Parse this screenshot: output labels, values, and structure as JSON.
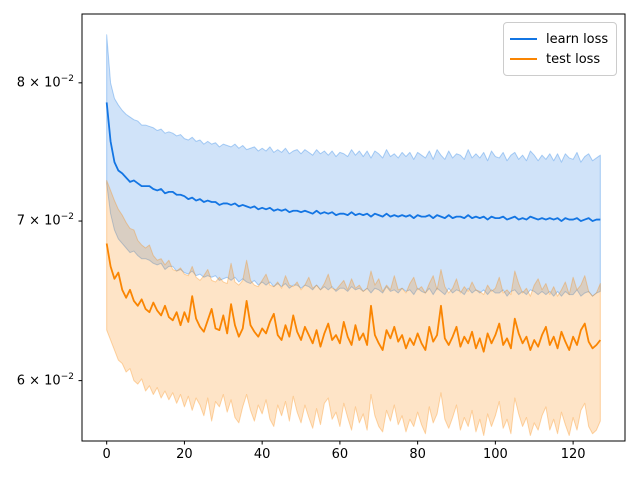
{
  "figure": {
    "background": "#ffffff"
  },
  "chart_data": {
    "type": "line",
    "title": "",
    "xlabel": "",
    "ylabel": "",
    "yscale": "log",
    "grid": false,
    "n_points": 128,
    "x_range": [
      0,
      127
    ],
    "xlim": [
      -6.35,
      133.35
    ],
    "ylim": [
      0.0566,
      0.0855
    ],
    "xticks": [
      0,
      20,
      40,
      60,
      80,
      100,
      120
    ],
    "xtick_labels": [
      "0",
      "20",
      "40",
      "60",
      "80",
      "100",
      "120"
    ],
    "yticks": [
      {
        "value": 0.06,
        "base": "6 × 10",
        "exp": "−2"
      },
      {
        "value": 0.07,
        "base": "7 × 10",
        "exp": "−2"
      },
      {
        "value": 0.08,
        "base": "8 × 10",
        "exp": "−2"
      }
    ],
    "legend": {
      "position": "upper right"
    },
    "series": [
      {
        "name": "learn loss",
        "color": "#1375e3",
        "band_alpha": 0.2,
        "mean": [
          0.0785,
          0.0756,
          0.0741,
          0.0735,
          0.0733,
          0.073,
          0.0727,
          0.0728,
          0.0726,
          0.0724,
          0.0724,
          0.0724,
          0.0722,
          0.0721,
          0.0722,
          0.0719,
          0.072,
          0.072,
          0.0718,
          0.0718,
          0.0717,
          0.0715,
          0.0716,
          0.0714,
          0.0715,
          0.0713,
          0.0714,
          0.0713,
          0.0713,
          0.0711,
          0.0712,
          0.0712,
          0.0711,
          0.0712,
          0.071,
          0.0711,
          0.071,
          0.0709,
          0.071,
          0.0708,
          0.0709,
          0.0708,
          0.0709,
          0.0707,
          0.0708,
          0.0707,
          0.0708,
          0.0706,
          0.0707,
          0.0707,
          0.0706,
          0.0707,
          0.0706,
          0.0705,
          0.0707,
          0.0705,
          0.0706,
          0.0705,
          0.0706,
          0.0704,
          0.0705,
          0.0705,
          0.0704,
          0.0706,
          0.0704,
          0.0705,
          0.0704,
          0.0705,
          0.0703,
          0.0705,
          0.0704,
          0.0703,
          0.0705,
          0.0703,
          0.0704,
          0.0703,
          0.0704,
          0.0703,
          0.0704,
          0.0702,
          0.0704,
          0.0703,
          0.0703,
          0.0704,
          0.0702,
          0.0704,
          0.0703,
          0.0702,
          0.0704,
          0.0702,
          0.0703,
          0.0703,
          0.0702,
          0.0704,
          0.0702,
          0.0703,
          0.0702,
          0.0703,
          0.0701,
          0.0703,
          0.0702,
          0.0702,
          0.0703,
          0.0701,
          0.0702,
          0.0703,
          0.0701,
          0.0702,
          0.0701,
          0.0703,
          0.0702,
          0.0701,
          0.0702,
          0.0701,
          0.0702,
          0.0701,
          0.0702,
          0.07,
          0.0702,
          0.0701,
          0.0701,
          0.0702,
          0.07,
          0.0701,
          0.0702,
          0.07,
          0.0701,
          0.0701
        ],
        "upper": [
          0.0838,
          0.08,
          0.0788,
          0.0783,
          0.0779,
          0.0776,
          0.0774,
          0.0772,
          0.0771,
          0.0768,
          0.0768,
          0.0767,
          0.0766,
          0.0764,
          0.0765,
          0.0762,
          0.0763,
          0.0762,
          0.076,
          0.0761,
          0.0758,
          0.0757,
          0.0759,
          0.0756,
          0.0757,
          0.0754,
          0.0756,
          0.0754,
          0.0755,
          0.0752,
          0.0754,
          0.0753,
          0.0752,
          0.0754,
          0.0751,
          0.0753,
          0.075,
          0.0751,
          0.0752,
          0.0749,
          0.0751,
          0.0749,
          0.0752,
          0.0748,
          0.075,
          0.0748,
          0.0751,
          0.0747,
          0.0749,
          0.075,
          0.0747,
          0.075,
          0.0748,
          0.0746,
          0.075,
          0.0747,
          0.0749,
          0.0746,
          0.0749,
          0.0745,
          0.0748,
          0.0747,
          0.0745,
          0.075,
          0.0746,
          0.0749,
          0.0745,
          0.0749,
          0.0744,
          0.0749,
          0.0747,
          0.0744,
          0.075,
          0.0745,
          0.0747,
          0.0744,
          0.0748,
          0.0745,
          0.0748,
          0.0743,
          0.0748,
          0.0746,
          0.0744,
          0.0749,
          0.0743,
          0.075,
          0.0746,
          0.0743,
          0.0749,
          0.0744,
          0.0747,
          0.0746,
          0.0743,
          0.075,
          0.0744,
          0.0747,
          0.0744,
          0.0748,
          0.0742,
          0.0749,
          0.0745,
          0.0744,
          0.0748,
          0.0742,
          0.0746,
          0.0748,
          0.0743,
          0.0746,
          0.0742,
          0.0749,
          0.0746,
          0.0742,
          0.0746,
          0.0743,
          0.0747,
          0.0742,
          0.0747,
          0.0741,
          0.0747,
          0.0744,
          0.0743,
          0.0748,
          0.0741,
          0.0745,
          0.0747,
          0.0742,
          0.0744,
          0.0746
        ],
        "lower": [
          0.0726,
          0.0705,
          0.0694,
          0.0688,
          0.0685,
          0.0682,
          0.0679,
          0.068,
          0.0677,
          0.0675,
          0.0675,
          0.0674,
          0.0672,
          0.0671,
          0.0672,
          0.0668,
          0.067,
          0.067,
          0.0667,
          0.0668,
          0.0666,
          0.0665,
          0.0667,
          0.0664,
          0.0665,
          0.0663,
          0.0664,
          0.0663,
          0.0664,
          0.0661,
          0.0662,
          0.0663,
          0.0661,
          0.0663,
          0.066,
          0.0662,
          0.066,
          0.0659,
          0.0661,
          0.0658,
          0.066,
          0.0658,
          0.066,
          0.0657,
          0.0659,
          0.0657,
          0.0659,
          0.0656,
          0.0658,
          0.0658,
          0.0656,
          0.0658,
          0.0657,
          0.0655,
          0.0658,
          0.0655,
          0.0657,
          0.0655,
          0.0657,
          0.0654,
          0.0656,
          0.0656,
          0.0654,
          0.0657,
          0.0655,
          0.0656,
          0.0654,
          0.0656,
          0.0653,
          0.0656,
          0.0655,
          0.0653,
          0.0657,
          0.0654,
          0.0655,
          0.0653,
          0.0656,
          0.0654,
          0.0655,
          0.0652,
          0.0656,
          0.0654,
          0.0653,
          0.0656,
          0.0652,
          0.0656,
          0.0654,
          0.0652,
          0.0656,
          0.0653,
          0.0655,
          0.0654,
          0.0652,
          0.0656,
          0.0653,
          0.0655,
          0.0653,
          0.0655,
          0.0652,
          0.0655,
          0.0653,
          0.0653,
          0.0655,
          0.0651,
          0.0654,
          0.0655,
          0.0652,
          0.0654,
          0.0652,
          0.0655,
          0.0654,
          0.0652,
          0.0654,
          0.0652,
          0.0654,
          0.0651,
          0.0654,
          0.0651,
          0.0654,
          0.0652,
          0.0652,
          0.0655,
          0.0651,
          0.0653,
          0.0654,
          0.0651,
          0.0653,
          0.0654
        ]
      },
      {
        "name": "test loss",
        "color": "#fa8502",
        "band_alpha": 0.22,
        "mean": [
          0.0685,
          0.067,
          0.0662,
          0.0666,
          0.0655,
          0.065,
          0.0655,
          0.0648,
          0.0645,
          0.0649,
          0.0643,
          0.0641,
          0.0647,
          0.0642,
          0.0639,
          0.0645,
          0.0638,
          0.0636,
          0.0641,
          0.0633,
          0.0641,
          0.0635,
          0.0651,
          0.0637,
          0.0632,
          0.0629,
          0.0636,
          0.0643,
          0.0631,
          0.063,
          0.0639,
          0.0628,
          0.0646,
          0.0633,
          0.0626,
          0.0631,
          0.0648,
          0.0633,
          0.0629,
          0.0626,
          0.0631,
          0.0628,
          0.0635,
          0.064,
          0.0627,
          0.0624,
          0.0633,
          0.0626,
          0.0639,
          0.0629,
          0.0624,
          0.0632,
          0.0627,
          0.0622,
          0.063,
          0.062,
          0.0628,
          0.0634,
          0.0624,
          0.0627,
          0.0622,
          0.0635,
          0.0626,
          0.0621,
          0.0633,
          0.0624,
          0.0628,
          0.0621,
          0.0645,
          0.0627,
          0.0622,
          0.0618,
          0.063,
          0.0625,
          0.0632,
          0.0623,
          0.0627,
          0.0619,
          0.0625,
          0.0621,
          0.0628,
          0.0622,
          0.0618,
          0.0632,
          0.0623,
          0.0627,
          0.0645,
          0.0625,
          0.0621,
          0.0626,
          0.0632,
          0.062,
          0.0626,
          0.0622,
          0.0629,
          0.0619,
          0.0625,
          0.0617,
          0.0628,
          0.0622,
          0.0627,
          0.0634,
          0.0621,
          0.0625,
          0.0619,
          0.0637,
          0.0628,
          0.0622,
          0.0626,
          0.0618,
          0.0624,
          0.062,
          0.0627,
          0.0632,
          0.0621,
          0.0626,
          0.0619,
          0.0629,
          0.0623,
          0.0618,
          0.0626,
          0.0621,
          0.063,
          0.0634,
          0.0623,
          0.0619,
          0.0621,
          0.0624
        ],
        "upper": [
          0.0728,
          0.0721,
          0.0714,
          0.0708,
          0.0704,
          0.0699,
          0.0695,
          0.0694,
          0.0687,
          0.0684,
          0.0682,
          0.0684,
          0.0677,
          0.0674,
          0.0675,
          0.0671,
          0.0674,
          0.0668,
          0.0667,
          0.0669,
          0.0665,
          0.0664,
          0.067,
          0.0663,
          0.0661,
          0.0664,
          0.0668,
          0.0661,
          0.066,
          0.0663,
          0.066,
          0.0659,
          0.0672,
          0.066,
          0.0658,
          0.0661,
          0.0674,
          0.0661,
          0.0658,
          0.0657,
          0.0661,
          0.0665,
          0.0658,
          0.0657,
          0.066,
          0.0656,
          0.0664,
          0.0658,
          0.0657,
          0.066,
          0.0655,
          0.0658,
          0.0663,
          0.0656,
          0.0658,
          0.0655,
          0.0659,
          0.0665,
          0.0656,
          0.0655,
          0.0658,
          0.0661,
          0.0655,
          0.0662,
          0.0656,
          0.0658,
          0.0654,
          0.0656,
          0.0667,
          0.0658,
          0.0662,
          0.0654,
          0.0658,
          0.0655,
          0.0664,
          0.0655,
          0.0656,
          0.0653,
          0.0659,
          0.0663,
          0.0655,
          0.0657,
          0.0653,
          0.0659,
          0.0664,
          0.0655,
          0.0668,
          0.0657,
          0.0653,
          0.0656,
          0.0662,
          0.0653,
          0.0657,
          0.0654,
          0.066,
          0.0655,
          0.0654,
          0.0652,
          0.0658,
          0.0654,
          0.0656,
          0.0663,
          0.0653,
          0.0655,
          0.0652,
          0.0667,
          0.0659,
          0.0653,
          0.0656,
          0.0651,
          0.0658,
          0.0662,
          0.0655,
          0.0659,
          0.0652,
          0.0657,
          0.0651,
          0.0655,
          0.066,
          0.0652,
          0.0663,
          0.0655,
          0.0658,
          0.0664,
          0.0654,
          0.0651,
          0.0653,
          0.0659
        ],
        "lower": [
          0.063,
          0.0624,
          0.0618,
          0.0612,
          0.061,
          0.0605,
          0.0607,
          0.06,
          0.0598,
          0.0601,
          0.0594,
          0.0597,
          0.0592,
          0.0596,
          0.059,
          0.0594,
          0.0589,
          0.0593,
          0.0587,
          0.0592,
          0.0585,
          0.0591,
          0.0583,
          0.059,
          0.0586,
          0.058,
          0.059,
          0.0577,
          0.0588,
          0.0585,
          0.0592,
          0.0582,
          0.0589,
          0.0579,
          0.0576,
          0.0585,
          0.0592,
          0.0583,
          0.0577,
          0.0586,
          0.0581,
          0.0589,
          0.0578,
          0.0574,
          0.0586,
          0.058,
          0.0588,
          0.0577,
          0.0591,
          0.0582,
          0.0576,
          0.0586,
          0.0579,
          0.0573,
          0.0584,
          0.0575,
          0.0587,
          0.059,
          0.0578,
          0.0582,
          0.0574,
          0.0587,
          0.0579,
          0.0572,
          0.0585,
          0.0576,
          0.0581,
          0.0572,
          0.0592,
          0.058,
          0.0574,
          0.0571,
          0.0583,
          0.0577,
          0.0586,
          0.0575,
          0.058,
          0.0571,
          0.0578,
          0.0574,
          0.0582,
          0.0575,
          0.057,
          0.0585,
          0.0576,
          0.0581,
          0.0593,
          0.0578,
          0.0573,
          0.0579,
          0.0586,
          0.0572,
          0.0579,
          0.0574,
          0.0583,
          0.0571,
          0.0578,
          0.0569,
          0.0581,
          0.0574,
          0.058,
          0.0588,
          0.0573,
          0.0578,
          0.057,
          0.059,
          0.0581,
          0.0574,
          0.0579,
          0.0569,
          0.0576,
          0.0572,
          0.058,
          0.0585,
          0.0572,
          0.0578,
          0.057,
          0.0582,
          0.0575,
          0.0569,
          0.0579,
          0.0572,
          0.0583,
          0.0587,
          0.0574,
          0.057,
          0.0572,
          0.0577
        ]
      }
    ]
  }
}
